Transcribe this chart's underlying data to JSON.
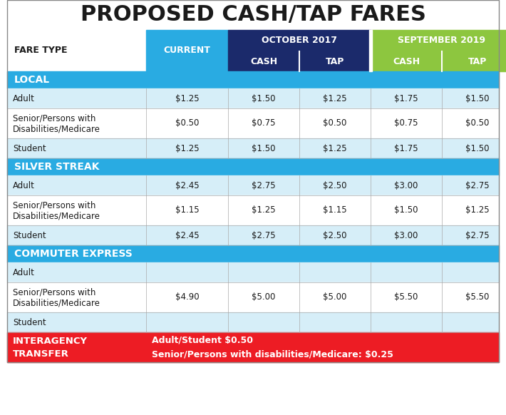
{
  "title": "PROPOSED CASH/TAP FARES",
  "title_fontsize": 22,
  "background_color": "#ffffff",
  "cyan_header": "#29ABE2",
  "dark_blue_header": "#1B2A6B",
  "green_header": "#8DC63F",
  "section_blue": "#29ABE2",
  "row_light": "#D6EEF8",
  "row_white": "#ffffff",
  "red_footer": "#ED1C24",
  "sections": [
    {
      "name": "LOCAL",
      "rows": [
        {
          "label": "Adult",
          "label2": "",
          "current": "$1.25",
          "oct_cash": "$1.50",
          "oct_tap": "$1.25",
          "sep_cash": "$1.75",
          "sep_tap": "$1.50"
        },
        {
          "label": "Senior/Persons with",
          "label2": "Disabilities/Medicare",
          "current": "$0.50",
          "oct_cash": "$0.75",
          "oct_tap": "$0.50",
          "sep_cash": "$0.75",
          "sep_tap": "$0.50"
        },
        {
          "label": "Student",
          "label2": "",
          "current": "$1.25",
          "oct_cash": "$1.50",
          "oct_tap": "$1.25",
          "sep_cash": "$1.75",
          "sep_tap": "$1.50"
        }
      ]
    },
    {
      "name": "SILVER STREAK",
      "rows": [
        {
          "label": "Adult",
          "label2": "",
          "current": "$2.45",
          "oct_cash": "$2.75",
          "oct_tap": "$2.50",
          "sep_cash": "$3.00",
          "sep_tap": "$2.75"
        },
        {
          "label": "Senior/Persons with",
          "label2": "Disabilities/Medicare",
          "current": "$1.15",
          "oct_cash": "$1.25",
          "oct_tap": "$1.15",
          "sep_cash": "$1.50",
          "sep_tap": "$1.25"
        },
        {
          "label": "Student",
          "label2": "",
          "current": "$2.45",
          "oct_cash": "$2.75",
          "oct_tap": "$2.50",
          "sep_cash": "$3.00",
          "sep_tap": "$2.75"
        }
      ]
    },
    {
      "name": "COMMUTER EXPRESS",
      "rows": [
        {
          "label": "Adult",
          "label2": "",
          "current": "",
          "oct_cash": "",
          "oct_tap": "",
          "sep_cash": "",
          "sep_tap": ""
        },
        {
          "label": "Senior/Persons with",
          "label2": "Disabilities/Medicare",
          "current": "$4.90",
          "oct_cash": "$5.00",
          "oct_tap": "$5.00",
          "sep_cash": "$5.50",
          "sep_tap": "$5.50"
        },
        {
          "label": "Student",
          "label2": "",
          "current": "",
          "oct_cash": "",
          "oct_tap": "",
          "sep_cash": "",
          "sep_tap": ""
        }
      ]
    }
  ],
  "footer_label": "INTERAGENCY\nTRANSFER",
  "footer_text": "Adult/Student $0.50\nSenior/Persons with disabilities/Medicare: $0.25"
}
